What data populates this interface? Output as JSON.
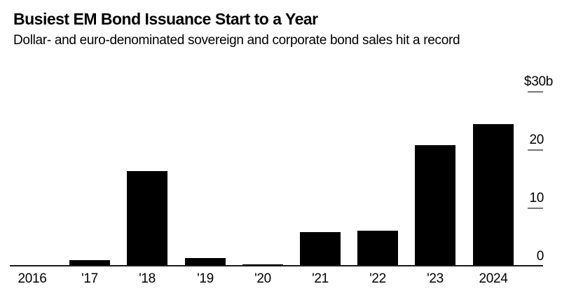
{
  "header": {
    "title": "Busiest EM Bond Issuance Start to a Year",
    "subtitle": "Dollar- and euro-denominated sovereign and corporate bond sales hit a record"
  },
  "colors": {
    "background": "#ffffff",
    "bar": "#000000",
    "axis_line": "#1a1a1a",
    "tick_dash": "#767676",
    "text": "#000000"
  },
  "chart_data": {
    "type": "bar",
    "title": "Busiest EM Bond Issuance Start to a Year",
    "subtitle": "Dollar- and euro-denominated sovereign and corporate bond sales hit a record",
    "categories": [
      "2016",
      "'17",
      "'18",
      "'19",
      "'20",
      "'21",
      "'22",
      "'23",
      "2024"
    ],
    "values": [
      0.3,
      1.1,
      16.4,
      1.4,
      0.4,
      5.9,
      6.1,
      20.8,
      24.5
    ],
    "ylim": [
      0,
      30
    ],
    "yticks": [
      {
        "value": 0,
        "label": "0",
        "dash": false
      },
      {
        "value": 10,
        "label": "10",
        "dash": true
      },
      {
        "value": 20,
        "label": "20",
        "dash": true
      },
      {
        "value": 30,
        "label": "$30b",
        "dash": true
      }
    ],
    "y_axis_top_label": "$30b",
    "grid": false,
    "legend": false,
    "bar_color": "#000000",
    "axis_label_side": "right"
  }
}
